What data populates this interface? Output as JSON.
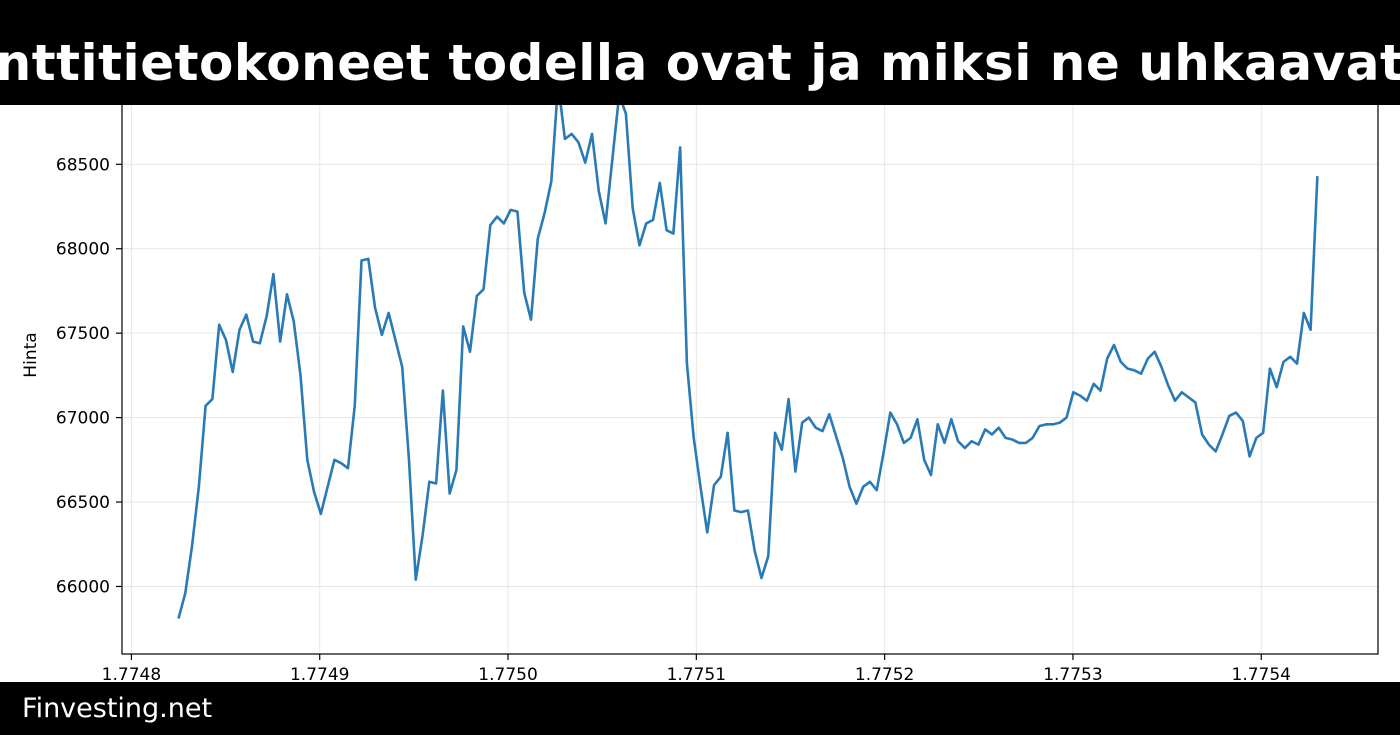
{
  "banner": {
    "title": "nttitietokoneet todella ovat ja miksi ne uhkaavat",
    "brand": "Finvesting.net"
  },
  "colors": {
    "line": "#2a7ab5",
    "grid": "#e6e6e6",
    "banner_bg": "#000000",
    "banner_text": "#ffffff"
  },
  "chart_data": {
    "type": "line",
    "title": "",
    "xlabel": "",
    "ylabel": "Hinta",
    "xlim": [
      1.774795,
      1.775462
    ],
    "ylim": [
      65600,
      68940
    ],
    "grid": true,
    "x_ticks": [
      1.7748,
      1.7749,
      1.775,
      1.7751,
      1.7752,
      1.7753,
      1.7754
    ],
    "x_tick_labels": [
      "1.7748",
      "1.7749",
      "1.7750",
      "1.7751",
      "1.7752",
      "1.7753",
      "1.7754"
    ],
    "y_ticks": [
      66000,
      66500,
      67000,
      67500,
      68000,
      68500
    ],
    "y_tick_labels": [
      "66000",
      "66500",
      "67000",
      "67500",
      "68000",
      "68500"
    ],
    "series": [
      {
        "name": "",
        "x": [
          1.774825,
          1.7748286,
          1.7748322,
          1.7748358,
          1.7748394,
          1.774843,
          1.7748466,
          1.7748502,
          1.7748538,
          1.7748574,
          1.774861,
          1.7748646,
          1.7748682,
          1.7748718,
          1.7748754,
          1.774879,
          1.7748826,
          1.7748862,
          1.7748898,
          1.7748934,
          1.774897,
          1.7749006,
          1.7749042,
          1.7749078,
          1.7749114,
          1.774915,
          1.7749186,
          1.7749222,
          1.7749258,
          1.7749294,
          1.774933,
          1.7749366,
          1.7749402,
          1.7749438,
          1.7749474,
          1.774951,
          1.7749546,
          1.7749582,
          1.7749618,
          1.7749654,
          1.774969,
          1.7749726,
          1.7749762,
          1.7749798,
          1.7749834,
          1.774987,
          1.7749906,
          1.7749942,
          1.7749978,
          1.7750014,
          1.775005,
          1.7750086,
          1.7750122,
          1.7750158,
          1.7750194,
          1.775023,
          1.7750266,
          1.7750302,
          1.7750338,
          1.7750374,
          1.775041,
          1.7750446,
          1.7750482,
          1.7750518,
          1.7750554,
          1.775059,
          1.7750626,
          1.7750662,
          1.7750698,
          1.7750734,
          1.775077,
          1.7750806,
          1.7750842,
          1.7750878,
          1.7750914,
          1.775095,
          1.7750986,
          1.7751022,
          1.7751058,
          1.7751094,
          1.775113,
          1.7751166,
          1.7751202,
          1.7751238,
          1.7751274,
          1.775131,
          1.7751346,
          1.7751382,
          1.7751418,
          1.7751454,
          1.775149,
          1.7751526,
          1.7751562,
          1.7751598,
          1.7751634,
          1.775167,
          1.7751706,
          1.7751742,
          1.7751778,
          1.7751814,
          1.775185,
          1.7751886,
          1.7751922,
          1.7751958,
          1.7751994,
          1.775203,
          1.7752066,
          1.7752102,
          1.7752138,
          1.7752174,
          1.775221,
          1.7752246,
          1.7752282,
          1.7752318,
          1.7752354,
          1.775239,
          1.7752426,
          1.7752462,
          1.7752498,
          1.7752534,
          1.775257,
          1.7752606,
          1.7752642,
          1.7752678,
          1.7752714,
          1.775275,
          1.7752786,
          1.7752822,
          1.7752858,
          1.7752894,
          1.775293,
          1.7752966,
          1.7753002,
          1.7753038,
          1.7753074,
          1.775311,
          1.7753146,
          1.7753182,
          1.7753218,
          1.7753254,
          1.775329,
          1.7753326,
          1.7753362,
          1.7753398,
          1.7753434,
          1.775347,
          1.7753506,
          1.7753542,
          1.7753578,
          1.7753614,
          1.775365,
          1.7753686,
          1.7753722,
          1.7753758,
          1.7753794,
          1.775383,
          1.7753866,
          1.7753902,
          1.7753938,
          1.7753974,
          1.775401,
          1.7754046,
          1.7754082,
          1.7754118,
          1.7754154,
          1.775419,
          1.7754226,
          1.7754262,
          1.7754298
        ],
        "y": [
          65810,
          65960,
          66240,
          66590,
          67070,
          67110,
          67550,
          67460,
          67270,
          67520,
          67610,
          67450,
          67440,
          67600,
          67850,
          67450,
          67730,
          67570,
          67250,
          66750,
          66560,
          66430,
          66590,
          66750,
          66730,
          66700,
          67070,
          67930,
          67940,
          67650,
          67490,
          67620,
          67460,
          67300,
          66750,
          66040,
          66300,
          66620,
          66610,
          67160,
          66550,
          66690,
          67540,
          67390,
          67720,
          67760,
          68140,
          68190,
          68150,
          68230,
          68220,
          67740,
          67580,
          68060,
          68210,
          68400,
          68980,
          68650,
          68680,
          68630,
          68510,
          68680,
          68340,
          68150,
          68530,
          68910,
          68800,
          68240,
          68020,
          68150,
          68170,
          68390,
          68110,
          68090,
          68600,
          67320,
          66880,
          66590,
          66320,
          66600,
          66650,
          66910,
          66450,
          66440,
          66450,
          66210,
          66050,
          66180,
          66910,
          66810,
          67110,
          66680,
          66970,
          67000,
          66940,
          66920,
          67020,
          66890,
          66760,
          66590,
          66490,
          66590,
          66620,
          66570,
          66790,
          67030,
          66960,
          66850,
          66880,
          66990,
          66750,
          66660,
          66960,
          66850,
          66990,
          66860,
          66820,
          66860,
          66840,
          66930,
          66900,
          66940,
          66880,
          66870,
          66850,
          66850,
          66880,
          66950,
          66960,
          66960,
          66970,
          67000,
          67150,
          67130,
          67100,
          67200,
          67160,
          67350,
          67430,
          67330,
          67290,
          67280,
          67260,
          67350,
          67390,
          67300,
          67190,
          67100,
          67150,
          67120,
          67090,
          66900,
          66840,
          66800,
          66900,
          67010,
          67030,
          66980,
          66770,
          66880,
          66910,
          67290,
          67180,
          67330,
          67360,
          67320,
          67620,
          67520,
          68430
        ]
      }
    ]
  }
}
